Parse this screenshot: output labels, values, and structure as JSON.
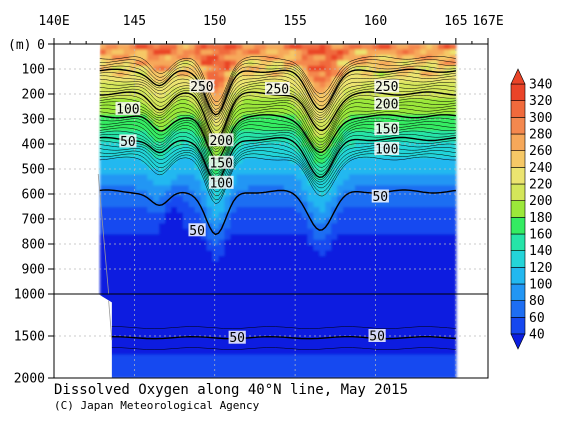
{
  "chart_data": {
    "type": "heatmap",
    "title": "Dissolved Oxygen along 40°N line, May 2015",
    "credit": "(C) Japan Meteorological Agency",
    "x_axis": {
      "range": [
        140,
        167
      ],
      "ticks": [
        140,
        145,
        150,
        155,
        160,
        165,
        167
      ],
      "tick_labels": [
        "140E",
        "145",
        "150",
        "155",
        "160",
        "165",
        "167E"
      ]
    },
    "y_axis": {
      "unit_label": "(m)",
      "upper_range": [
        0,
        1000
      ],
      "lower_range": [
        1000,
        2000
      ],
      "ticks": [
        0,
        100,
        200,
        300,
        400,
        500,
        600,
        700,
        800,
        900,
        1000,
        1500,
        2000
      ],
      "tick_labels": [
        "0",
        "100",
        "200",
        "300",
        "400",
        "500",
        "600",
        "700",
        "800",
        "900",
        "1000",
        "1500",
        "2000"
      ]
    },
    "colorbar": {
      "levels": [
        40,
        60,
        80,
        100,
        120,
        140,
        160,
        180,
        200,
        220,
        240,
        260,
        280,
        300,
        320,
        340
      ],
      "labels": [
        "40",
        "60",
        "80",
        "100",
        "120",
        "140",
        "160",
        "180",
        "200",
        "220",
        "240",
        "260",
        "280",
        "300",
        "320",
        "340"
      ],
      "colors": [
        "#0b1ee0",
        "#1648f0",
        "#1e6ef2",
        "#2296f4",
        "#22b8f0",
        "#24d4d8",
        "#26e4a8",
        "#34ec62",
        "#9be83a",
        "#d4e65a",
        "#ece470",
        "#f6c866",
        "#f6a85a",
        "#f4884e",
        "#f06a3c",
        "#ea4428"
      ]
    },
    "contour_labels": [
      {
        "text": "250",
        "x": 149.2,
        "depth": 170
      },
      {
        "text": "250",
        "x": 153.9,
        "depth": 180
      },
      {
        "text": "250",
        "x": 160.7,
        "depth": 170
      },
      {
        "text": "200",
        "x": 160.7,
        "depth": 240
      },
      {
        "text": "100",
        "x": 144.6,
        "depth": 260
      },
      {
        "text": "150",
        "x": 160.7,
        "depth": 340
      },
      {
        "text": "200",
        "x": 150.4,
        "depth": 385
      },
      {
        "text": "50",
        "x": 144.6,
        "depth": 390
      },
      {
        "text": "100",
        "x": 160.7,
        "depth": 420
      },
      {
        "text": "150",
        "x": 150.4,
        "depth": 475
      },
      {
        "text": "100",
        "x": 150.4,
        "depth": 555
      },
      {
        "text": "50",
        "x": 160.3,
        "depth": 610
      },
      {
        "text": "50",
        "x": 148.9,
        "depth": 745
      },
      {
        "text": "50",
        "x": 151.4,
        "depth": 1520
      },
      {
        "text": "50",
        "x": 160.1,
        "depth": 1500
      }
    ]
  }
}
